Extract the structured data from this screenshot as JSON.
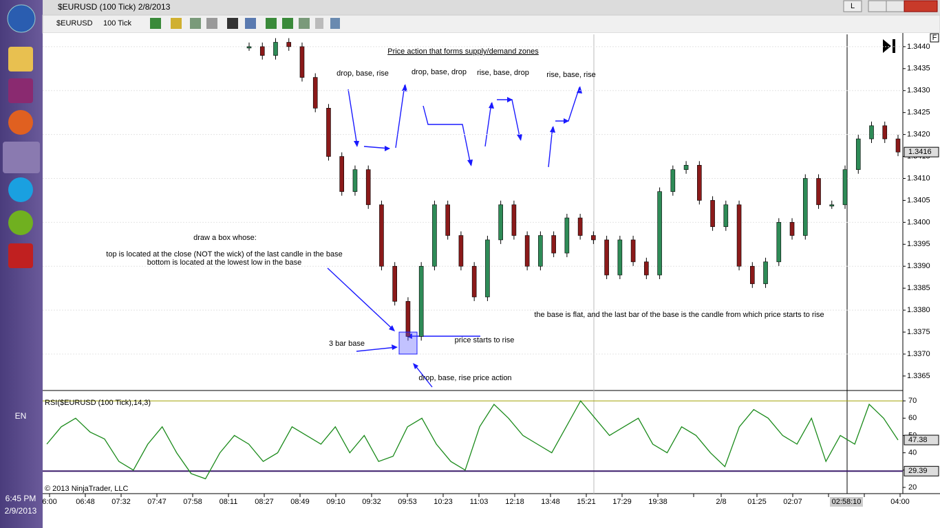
{
  "window": {
    "title": "$EURUSD (100 Tick)  2/8/2013",
    "button_l": "L"
  },
  "toolbar": {
    "instrument": "$EURUSD",
    "period": "100 Tick"
  },
  "taskbar": {
    "language": "EN",
    "time": "6:45 PM",
    "date": "2/9/2013"
  },
  "chart": {
    "panel_button": "F",
    "ylim": [
      1.33617,
      1.34428
    ],
    "yticks": [
      1.3365,
      {
        "value": 1.337,
        "label": "1.3370"
      },
      1.3375,
      {
        "value": 1.338,
        "label": "1.3380"
      },
      1.3385,
      {
        "value": 1.339,
        "label": "1.3390"
      },
      1.3395,
      {
        "value": 1.34,
        "label": "1.3400"
      },
      1.3405,
      {
        "value": 1.341,
        "label": "1.3410"
      },
      1.3415,
      {
        "value": 1.342,
        "label": "1.3420"
      },
      1.3425,
      {
        "value": 1.343,
        "label": "1.3430"
      },
      1.3435,
      {
        "value": 1.344,
        "label": "1.3440"
      }
    ],
    "last_price": 1.3416,
    "closes": [
      1.344,
      1.3438,
      1.3441,
      1.344,
      1.3433,
      1.3426,
      1.3415,
      1.3407,
      1.3412,
      1.3404,
      1.339,
      1.3382,
      1.3374,
      1.339,
      1.3404,
      1.3397,
      1.339,
      1.3383,
      1.3396,
      1.3404,
      1.3397,
      1.339,
      1.3397,
      1.3393,
      1.3401,
      1.3397,
      1.3396,
      1.3388,
      1.3396,
      1.3391,
      1.3388,
      1.3407,
      1.3412,
      1.3413,
      1.3405,
      1.3399,
      1.3404,
      1.339,
      1.3386,
      1.3391,
      1.34,
      1.3397,
      1.341,
      1.3404,
      1.3404,
      1.3412,
      1.3419,
      1.3422,
      1.3419,
      1.3416
    ],
    "zone_box": {
      "top": 1.3375,
      "bottom": 1.337
    },
    "annotations": [
      "Price action that forms supply/demand zones",
      "drop, base, rise",
      "drop, base, drop",
      "rise, base, drop",
      "rise, base, rise",
      "draw a box whose:",
      "top is located at the close (NOT the wick) of the last candle in the base",
      "bottom is located at the lowest low in the base",
      "the base is flat, and the last bar of the base is the candle from which  price starts to rise",
      "3 bar base",
      "price starts to rise",
      "drop, base, rise price action"
    ]
  },
  "rsi": {
    "label": "RSI($EURUSD (100 Tick),14,3)",
    "copyright": "© 2013 NinjaTrader, LLC",
    "ylim": [
      16.4,
      75.2
    ],
    "yticks": [
      20,
      30,
      40,
      50,
      60,
      70
    ],
    "upper_level": 70,
    "lower_level": 29.39,
    "last_value": 47.38,
    "values": [
      45,
      55,
      60,
      52,
      48,
      35,
      30,
      45,
      55,
      40,
      28,
      25,
      40,
      50,
      45,
      35,
      40,
      55,
      50,
      45,
      55,
      40,
      50,
      35,
      38,
      55,
      60,
      45,
      35,
      30,
      55,
      68,
      60,
      50,
      45,
      40,
      55,
      70,
      60,
      50,
      55,
      60,
      45,
      40,
      55,
      50,
      40,
      32,
      55,
      65,
      60,
      50,
      45,
      60,
      35,
      50,
      45,
      68,
      60,
      47.38
    ]
  },
  "time_axis": {
    "labels": [
      "6:00",
      "06:48",
      "07:32",
      "07:47",
      "07:58",
      "08:11",
      "08:27",
      "08:49",
      "09:10",
      "09:32",
      "09:53",
      "10:23",
      "11:03",
      "12:18",
      "13:48",
      "15:21",
      "17:29",
      "19:38",
      null,
      "2/8",
      "01:25",
      "02:07",
      null,
      "02:58:10",
      "04:00"
    ]
  }
}
